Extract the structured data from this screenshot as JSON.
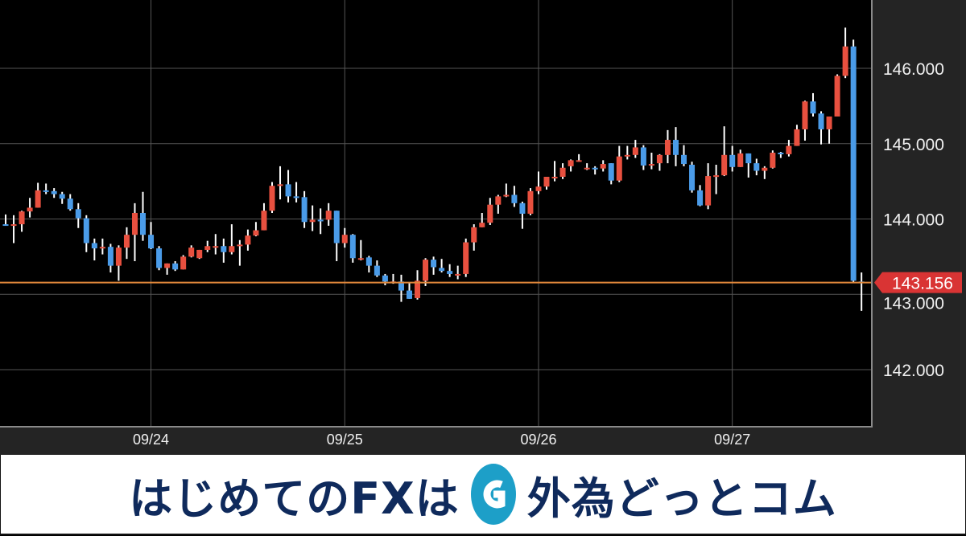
{
  "chart_data": {
    "type": "candlestick",
    "y_ticks": [
      "146.000",
      "145.000",
      "144.000",
      "143.000",
      "142.000"
    ],
    "y_tick_values": [
      146,
      145,
      144,
      143,
      142
    ],
    "ylim": [
      141.2,
      146.9
    ],
    "x_ticks": [
      {
        "label": "09/24",
        "index": 18
      },
      {
        "label": "09/25",
        "index": 42
      },
      {
        "label": "09/26",
        "index": 66
      },
      {
        "label": "09/27",
        "index": 90
      }
    ],
    "grid": true,
    "current_price": 143.156,
    "current_price_label": "143.156",
    "colors": {
      "up": "#e8503f",
      "down": "#4a9be8",
      "wick": "#ffffff",
      "price_line": "#e0873a",
      "price_label": "#d93434",
      "grid": "#555555",
      "background": "#000000",
      "axis_bg": "#242424"
    },
    "ohlc": [
      [
        143.93,
        144.06,
        143.91,
        143.92
      ],
      [
        143.92,
        144.05,
        143.68,
        143.93
      ],
      [
        143.93,
        144.11,
        143.83,
        144.1
      ],
      [
        144.1,
        144.28,
        144.02,
        144.15
      ],
      [
        144.15,
        144.48,
        144.15,
        144.38
      ],
      [
        144.38,
        144.47,
        144.33,
        144.36
      ],
      [
        144.37,
        144.41,
        144.28,
        144.33
      ],
      [
        144.33,
        144.36,
        144.2,
        144.27
      ],
      [
        144.27,
        144.33,
        144.11,
        144.13
      ],
      [
        144.13,
        144.21,
        143.88,
        144.01
      ],
      [
        144.01,
        144.05,
        143.56,
        143.68
      ],
      [
        143.68,
        143.74,
        143.45,
        143.61
      ],
      [
        143.61,
        143.74,
        143.53,
        143.63
      ],
      [
        143.63,
        143.67,
        143.29,
        143.38
      ],
      [
        143.38,
        143.65,
        143.18,
        143.62
      ],
      [
        143.62,
        143.89,
        143.47,
        143.79
      ],
      [
        143.79,
        144.21,
        143.44,
        144.08
      ],
      [
        144.08,
        144.36,
        143.71,
        143.79
      ],
      [
        143.79,
        143.96,
        143.6,
        143.61
      ],
      [
        143.61,
        143.64,
        143.32,
        143.35
      ],
      [
        143.35,
        143.41,
        143.26,
        143.41
      ],
      [
        143.41,
        143.44,
        143.31,
        143.33
      ],
      [
        143.33,
        143.52,
        143.33,
        143.5
      ],
      [
        143.5,
        143.65,
        143.49,
        143.62
      ],
      [
        143.48,
        143.59,
        143.47,
        143.59
      ],
      [
        143.59,
        143.71,
        143.56,
        143.64
      ],
      [
        143.63,
        143.8,
        143.53,
        143.64
      ],
      [
        143.64,
        143.74,
        143.42,
        143.56
      ],
      [
        143.56,
        143.93,
        143.53,
        143.64
      ],
      [
        143.64,
        143.72,
        143.38,
        143.66
      ],
      [
        143.66,
        143.86,
        143.58,
        143.78
      ],
      [
        143.78,
        143.96,
        143.77,
        143.85
      ],
      [
        143.85,
        144.21,
        143.85,
        144.11
      ],
      [
        144.11,
        144.49,
        144.08,
        144.44
      ],
      [
        144.44,
        144.7,
        144.26,
        144.46
      ],
      [
        144.46,
        144.65,
        144.22,
        144.3
      ],
      [
        144.3,
        144.49,
        144.22,
        144.29
      ],
      [
        144.29,
        144.37,
        143.88,
        143.96
      ],
      [
        143.96,
        144.18,
        143.84,
        143.99
      ],
      [
        143.99,
        144.14,
        143.8,
        143.98
      ],
      [
        143.99,
        144.21,
        143.91,
        144.11
      ],
      [
        144.11,
        144.11,
        143.44,
        143.68
      ],
      [
        143.68,
        143.88,
        143.62,
        143.79
      ],
      [
        143.79,
        143.8,
        143.42,
        143.48
      ],
      [
        143.47,
        143.72,
        143.45,
        143.48
      ],
      [
        143.49,
        143.51,
        143.29,
        143.38
      ],
      [
        143.38,
        143.45,
        143.23,
        143.25
      ],
      [
        143.25,
        143.27,
        143.12,
        143.17
      ],
      [
        143.16,
        143.27,
        143.14,
        143.17
      ],
      [
        143.17,
        143.26,
        142.9,
        143.05
      ],
      [
        143.05,
        143.16,
        142.94,
        142.94
      ],
      [
        142.95,
        143.32,
        142.93,
        143.18
      ],
      [
        143.18,
        143.48,
        143.11,
        143.46
      ],
      [
        143.46,
        143.5,
        143.26,
        143.36
      ],
      [
        143.35,
        143.47,
        143.29,
        143.31
      ],
      [
        143.31,
        143.4,
        143.23,
        143.27
      ],
      [
        143.26,
        143.38,
        143.2,
        143.27
      ],
      [
        143.27,
        143.74,
        143.23,
        143.69
      ],
      [
        143.69,
        143.93,
        143.58,
        143.89
      ],
      [
        143.89,
        144.08,
        143.89,
        143.95
      ],
      [
        143.95,
        144.28,
        143.92,
        144.19
      ],
      [
        144.19,
        144.32,
        144.07,
        144.3
      ],
      [
        144.3,
        144.47,
        144.29,
        144.32
      ],
      [
        144.32,
        144.44,
        144.16,
        144.21
      ],
      [
        144.21,
        144.23,
        143.87,
        144.07
      ],
      [
        144.07,
        144.41,
        144.05,
        144.37
      ],
      [
        144.37,
        144.63,
        144.33,
        144.43
      ],
      [
        144.43,
        144.56,
        144.39,
        144.56
      ],
      [
        144.55,
        144.77,
        144.5,
        144.56
      ],
      [
        144.56,
        144.74,
        144.53,
        144.68
      ],
      [
        144.7,
        144.79,
        144.63,
        144.78
      ],
      [
        144.76,
        144.86,
        144.76,
        144.78
      ],
      [
        144.66,
        144.74,
        144.65,
        144.68
      ],
      [
        144.68,
        144.7,
        144.59,
        144.66
      ],
      [
        144.67,
        144.78,
        144.63,
        144.73
      ],
      [
        144.74,
        144.74,
        144.46,
        144.51
      ],
      [
        144.51,
        144.97,
        144.49,
        144.83
      ],
      [
        144.83,
        144.97,
        144.79,
        144.85
      ],
      [
        144.85,
        145.05,
        144.81,
        144.95
      ],
      [
        144.95,
        144.98,
        144.65,
        144.71
      ],
      [
        144.72,
        144.88,
        144.66,
        144.73
      ],
      [
        144.74,
        144.86,
        144.64,
        144.85
      ],
      [
        144.85,
        145.18,
        144.74,
        145.05
      ],
      [
        145.05,
        145.22,
        144.7,
        144.85
      ],
      [
        144.85,
        144.98,
        144.7,
        144.73
      ],
      [
        144.72,
        144.76,
        144.35,
        144.38
      ],
      [
        144.38,
        144.45,
        144.17,
        144.18
      ],
      [
        144.18,
        144.74,
        144.13,
        144.57
      ],
      [
        144.57,
        144.72,
        144.33,
        144.58
      ],
      [
        144.58,
        145.23,
        144.57,
        144.85
      ],
      [
        144.85,
        144.97,
        144.63,
        144.69
      ],
      [
        144.69,
        144.92,
        144.69,
        144.87
      ],
      [
        144.87,
        144.87,
        144.55,
        144.74
      ],
      [
        144.74,
        144.8,
        144.58,
        144.64
      ],
      [
        144.64,
        144.7,
        144.53,
        144.68
      ],
      [
        144.68,
        144.91,
        144.67,
        144.88
      ],
      [
        144.88,
        144.89,
        144.81,
        144.86
      ],
      [
        144.86,
        145.05,
        144.83,
        144.97
      ],
      [
        144.97,
        145.25,
        144.97,
        145.19
      ],
      [
        145.19,
        145.57,
        145.04,
        145.56
      ],
      [
        145.56,
        145.67,
        145.36,
        145.4
      ],
      [
        145.4,
        145.43,
        144.99,
        145.19
      ],
      [
        145.19,
        145.36,
        145.0,
        145.36
      ],
      [
        145.36,
        145.92,
        145.36,
        145.9
      ],
      [
        145.9,
        146.54,
        145.87,
        146.29
      ],
      [
        146.29,
        146.38,
        143.15,
        143.18
      ],
      [
        143.17,
        143.29,
        142.78,
        143.156
      ]
    ]
  },
  "banner": {
    "text_left": "はじめてのFXは",
    "brand": "外為どっとコム",
    "logo_icon": "g-circle-logo",
    "logo_color": "#1d9fc8",
    "text_color": "#0f2a5c"
  }
}
